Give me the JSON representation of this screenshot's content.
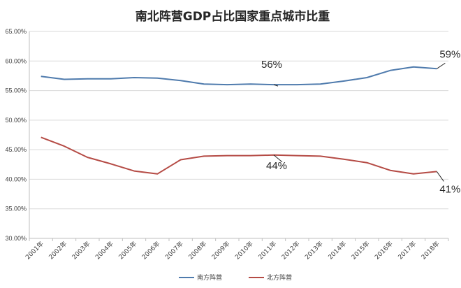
{
  "chart_data": {
    "type": "line",
    "title": "南北阵营GDP占比国家重点城市比重",
    "xlabel": "",
    "ylabel": "",
    "categories": [
      "2001年",
      "2002年",
      "2003年",
      "2004年",
      "2005年",
      "2006年",
      "2007年",
      "2008年",
      "2009年",
      "2010年",
      "2011年",
      "2012年",
      "2013年",
      "2014年",
      "2015年",
      "2016年",
      "2017年",
      "2018年"
    ],
    "ylim": [
      0.3,
      0.65
    ],
    "yticks": [
      "30.00%",
      "35.00%",
      "40.00%",
      "45.00%",
      "50.00%",
      "55.00%",
      "60.00%",
      "65.00%"
    ],
    "grid": "horizontal",
    "legend_position": "bottom",
    "series": [
      {
        "name": "南方阵营",
        "color": "#4f7bad",
        "values": [
          0.574,
          0.569,
          0.57,
          0.57,
          0.572,
          0.571,
          0.567,
          0.561,
          0.56,
          0.561,
          0.56,
          0.56,
          0.561,
          0.566,
          0.572,
          0.584,
          0.59,
          0.587
        ]
      },
      {
        "name": "北方阵营",
        "color": "#b54b45",
        "values": [
          0.471,
          0.456,
          0.437,
          0.426,
          0.414,
          0.409,
          0.433,
          0.439,
          0.44,
          0.44,
          0.441,
          0.44,
          0.439,
          0.434,
          0.428,
          0.415,
          0.409,
          0.413
        ]
      }
    ],
    "annotations": [
      {
        "text": "56%",
        "series": 0,
        "index": 10
      },
      {
        "text": "59%",
        "series": 0,
        "index": 17
      },
      {
        "text": "44%",
        "series": 1,
        "index": 10
      },
      {
        "text": "41%",
        "series": 1,
        "index": 17
      }
    ]
  }
}
